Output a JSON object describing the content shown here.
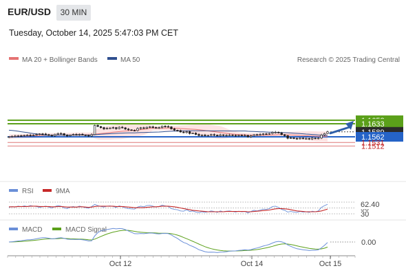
{
  "header": {
    "symbol": "EUR/USD",
    "timeframe": "30 MIN",
    "datetime": "Tuesday, October 14, 2025 5:47:03 PM CET"
  },
  "legend": {
    "ma20": "MA 20 + Bollinger Bands",
    "ma50": "MA 50",
    "copyright": "Research © 2025 Trading Central"
  },
  "colors": {
    "up": "#2e7d32",
    "down": "#c62828",
    "candle": "#222222",
    "ma20": "#e57373",
    "ma50": "#2f4f8f",
    "bollinger_fill": "#fde3e3",
    "resistance": "#5ba01a",
    "pivot": "#2563c7",
    "support": "#e79a9a",
    "rsi": "#6a8fd8",
    "rsi_ma": "#c62828",
    "macd": "#6a8fd8",
    "macd_signal": "#5ba01a",
    "arrow": "#2f5fa8"
  },
  "chart_data": [
    {
      "type": "candlestick",
      "panel": "price",
      "instrument": "EUR/USD",
      "timeframe": "30 MIN",
      "x_ticks": [
        "Oct 12",
        "Oct 14",
        "Oct 15"
      ],
      "ylim": [
        1.1505,
        1.166
      ],
      "last_price": 1.1589,
      "levels": [
        {
          "label": "1.1652",
          "value": 1.1652,
          "role": "resistance"
        },
        {
          "label": "1.1633",
          "value": 1.1633,
          "role": "resistance"
        },
        {
          "label": "1.1589",
          "value": 1.1589,
          "role": "last"
        },
        {
          "label": "1.1562",
          "value": 1.1562,
          "role": "pivot"
        },
        {
          "label": "1.1531",
          "value": 1.1531,
          "role": "support"
        },
        {
          "label": "1.1512",
          "value": 1.1512,
          "role": "support"
        }
      ],
      "closes": [
        1.1562,
        1.1565,
        1.1566,
        1.1568,
        1.1567,
        1.157,
        1.1571,
        1.1569,
        1.1572,
        1.1575,
        1.1578,
        1.1577,
        1.1574,
        1.157,
        1.1568,
        1.1576,
        1.158,
        1.1579,
        1.1571,
        1.1567,
        1.1572,
        1.1575,
        1.1573,
        1.1576,
        1.1572,
        1.157,
        1.1566,
        1.1574,
        1.1624,
        1.1618,
        1.1612,
        1.1605,
        1.1608,
        1.161,
        1.1612,
        1.1606,
        1.1614,
        1.1611,
        1.1604,
        1.16,
        1.1597,
        1.1596,
        1.1607,
        1.1611,
        1.1608,
        1.1614,
        1.1616,
        1.1613,
        1.1609,
        1.1612,
        1.162,
        1.1618,
        1.1616,
        1.1605,
        1.1598,
        1.1596,
        1.1588,
        1.1585,
        1.159,
        1.158,
        1.1582,
        1.1575,
        1.1569,
        1.1572,
        1.1568,
        1.157,
        1.1574,
        1.1571,
        1.1567,
        1.1573,
        1.1569,
        1.1571,
        1.1572,
        1.157,
        1.1567,
        1.1571,
        1.1568,
        1.157,
        1.1562,
        1.1568,
        1.1574,
        1.1572,
        1.1575,
        1.1578,
        1.1577,
        1.158,
        1.1586,
        1.1587,
        1.1583,
        1.1574,
        1.1568,
        1.1554,
        1.1556,
        1.1553,
        1.1552,
        1.1555,
        1.1552,
        1.1553,
        1.155,
        1.1555,
        1.1552,
        1.1555,
        1.1572,
        1.158,
        1.1589
      ]
    },
    {
      "type": "line",
      "panel": "rsi",
      "series": [
        {
          "name": "RSI"
        },
        {
          "name": "9MA"
        }
      ],
      "ticks": [
        "70",
        "50",
        "30"
      ],
      "last_label": "62.40",
      "last_value": 62.4,
      "ylim": [
        25,
        75
      ],
      "rsi": [
        52,
        55,
        53,
        56,
        54,
        57,
        55,
        58,
        56,
        55,
        52,
        54,
        56,
        53,
        50,
        55,
        58,
        56,
        50,
        48,
        53,
        55,
        52,
        56,
        54,
        51,
        49,
        55,
        62,
        58,
        55,
        53,
        56,
        57,
        55,
        52,
        57,
        54,
        50,
        48,
        47,
        46,
        53,
        56,
        54,
        58,
        59,
        56,
        53,
        55,
        60,
        57,
        55,
        48,
        45,
        44,
        40,
        39,
        44,
        38,
        40,
        36,
        34,
        37,
        35,
        37,
        40,
        38,
        35,
        40,
        37,
        39,
        40,
        38,
        36,
        39,
        37,
        38,
        33,
        38,
        42,
        40,
        43,
        46,
        45,
        48,
        55,
        56,
        52,
        45,
        42,
        36,
        38,
        36,
        35,
        38,
        36,
        37,
        35,
        39,
        37,
        40,
        52,
        58,
        62.4
      ],
      "rsi_ma": [
        54,
        54,
        54,
        55,
        55,
        55,
        55,
        56,
        56,
        56,
        55,
        55,
        55,
        55,
        54,
        54,
        55,
        55,
        54,
        53,
        53,
        53,
        53,
        54,
        54,
        53,
        52,
        53,
        55,
        56,
        56,
        56,
        56,
        56,
        56,
        55,
        55,
        55,
        54,
        53,
        52,
        51,
        51,
        51,
        51,
        52,
        53,
        54,
        54,
        55,
        56,
        56,
        56,
        55,
        54,
        52,
        50,
        48,
        46,
        44,
        42,
        41,
        40,
        39,
        38,
        37,
        37,
        37,
        37,
        37,
        37,
        38,
        38,
        38,
        38,
        38,
        38,
        38,
        37,
        37,
        38,
        39,
        40,
        41,
        42,
        43,
        45,
        47,
        48,
        48,
        47,
        46,
        44,
        42,
        40,
        39,
        38,
        37,
        37,
        37,
        37,
        38,
        40,
        43,
        46
      ]
    },
    {
      "type": "line",
      "panel": "macd",
      "series": [
        {
          "name": "MACD"
        },
        {
          "name": "MACD Signal"
        }
      ],
      "last_label": "0.00",
      "last_value": 0.0,
      "ylim": [
        -0.002,
        0.0025
      ]
    }
  ]
}
